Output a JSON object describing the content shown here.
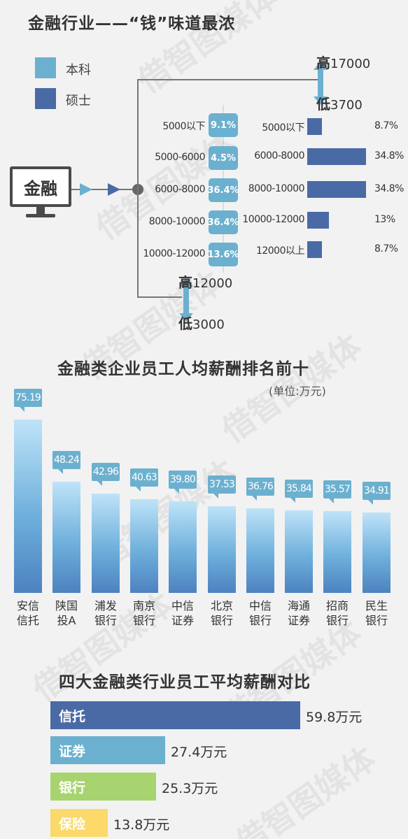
{
  "watermark": "借智图媒体",
  "section1": {
    "title": "金融行业——“钱”味道最浓",
    "legend": [
      {
        "label": "本科",
        "color": "#6cb0cf"
      },
      {
        "label": "硕士",
        "color": "#4a6aa6"
      }
    ],
    "industry": "金融",
    "master_high": {
      "tag": "高",
      "value": "17000"
    },
    "master_low": {
      "tag": "低",
      "value": "3700"
    },
    "bachelor_high": {
      "tag": "高",
      "value": "12000"
    },
    "bachelor_low": {
      "tag": "低",
      "value": "3000"
    }
  },
  "section2": {
    "title": "金融类企业员工人均薪酬排名前十",
    "unit": "(单位:万元)"
  },
  "section3": {
    "title": "四大金融类行业员工平均薪酬对比"
  },
  "chart_data": [
    {
      "type": "bar",
      "orientation": "horizontal",
      "name": "本科",
      "categories": [
        "5000以下",
        "5000-6000",
        "6000-8000",
        "8000-10000",
        "10000-12000"
      ],
      "values": [
        9.1,
        4.5,
        36.4,
        36.4,
        13.6
      ],
      "labels": [
        "9.1%",
        "4.5%",
        "36.4%",
        "36.4%",
        "13.6%"
      ],
      "color": "#6cb0cf"
    },
    {
      "type": "bar",
      "orientation": "horizontal",
      "name": "硕士",
      "categories": [
        "5000以下",
        "6000-8000",
        "8000-10000",
        "10000-12000",
        "12000以上"
      ],
      "values": [
        8.7,
        34.8,
        34.8,
        13,
        8.7
      ],
      "labels": [
        "8.7%",
        "34.8%",
        "34.8%",
        "13%",
        "8.7%"
      ],
      "color": "#4a6aa6",
      "xlim": [
        0,
        34.8
      ]
    },
    {
      "type": "bar",
      "categories": [
        "安信\n信托",
        "陕国\n投A",
        "浦发\n银行",
        "南京\n银行",
        "中信\n证券",
        "北京\n银行",
        "中信\n银行",
        "海通\n证券",
        "招商\n银行",
        "民生\n银行"
      ],
      "values": [
        75.19,
        48.24,
        42.96,
        40.63,
        39.8,
        37.53,
        36.76,
        35.84,
        35.57,
        34.91
      ],
      "labels": [
        "75.19",
        "48.24",
        "42.96",
        "40.63",
        "39.80",
        "37.53",
        "36.76",
        "35.84",
        "35.57",
        "34.91"
      ],
      "ylim": [
        0,
        75.19
      ]
    },
    {
      "type": "bar",
      "orientation": "horizontal",
      "categories": [
        "信托",
        "证券",
        "银行",
        "保险"
      ],
      "values": [
        59.8,
        27.4,
        25.3,
        13.8
      ],
      "labels": [
        "59.8万元",
        "27.4万元",
        "25.3万元",
        "13.8万元"
      ],
      "colors": [
        "#4a6aa6",
        "#6cb0cf",
        "#a8d46f",
        "#fbd96a"
      ],
      "xlim": [
        0,
        59.8
      ]
    }
  ]
}
